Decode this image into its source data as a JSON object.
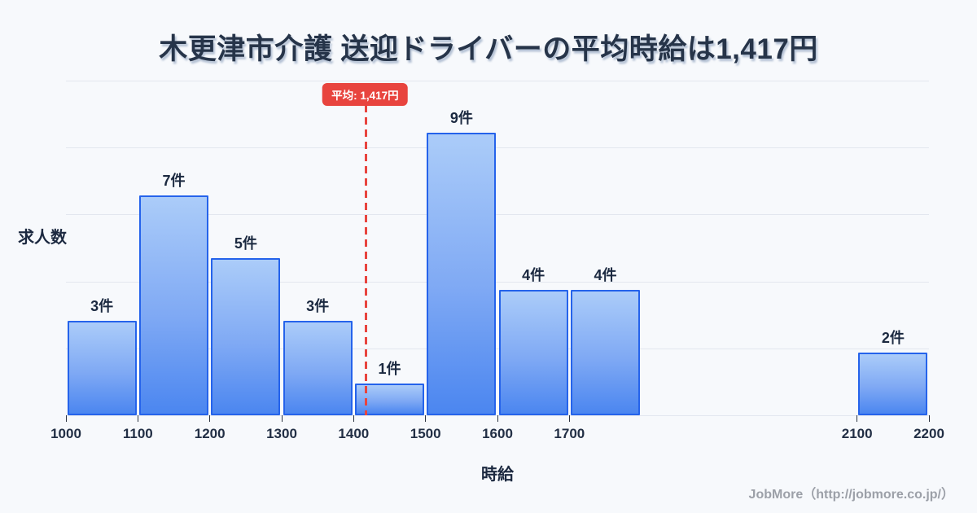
{
  "chart_data": {
    "type": "bar",
    "title": "木更津市介護 送迎ドライバーの平均時給は1,417円",
    "xlabel": "時給",
    "ylabel": "求人数",
    "unit_suffix": "件",
    "bars": [
      {
        "x0": 1000,
        "x1": 1100,
        "count": 3,
        "label": "3件"
      },
      {
        "x0": 1100,
        "x1": 1200,
        "count": 7,
        "label": "7件"
      },
      {
        "x0": 1200,
        "x1": 1300,
        "count": 5,
        "label": "5件"
      },
      {
        "x0": 1300,
        "x1": 1400,
        "count": 3,
        "label": "3件"
      },
      {
        "x0": 1400,
        "x1": 1500,
        "count": 1,
        "label": "1件"
      },
      {
        "x0": 1500,
        "x1": 1600,
        "count": 9,
        "label": "9件"
      },
      {
        "x0": 1600,
        "x1": 1700,
        "count": 4,
        "label": "4件"
      },
      {
        "x0": 1700,
        "x1": 1800,
        "count": 4,
        "label": "4件"
      },
      {
        "x0": 2100,
        "x1": 2200,
        "count": 2,
        "label": "2件"
      }
    ],
    "xticks": [
      "1000",
      "1100",
      "1200",
      "1300",
      "1400",
      "1500",
      "1600",
      "1700",
      "2100",
      "2200"
    ],
    "xlim": [
      1000,
      2200
    ],
    "ylim": [
      0,
      10.65
    ],
    "grid_divisions": 5,
    "grid_on": true,
    "legend": "none",
    "mean": {
      "value": 1417,
      "label": "平均: 1,417円"
    }
  },
  "colors": {
    "background": "#f7f9fc",
    "bar_fill_top": "#abccf9",
    "bar_fill_bottom": "#4b86f0",
    "bar_border": "#2563eb",
    "mean_accent": "#e8443e",
    "grid": "#e3e7ef",
    "title_text": "#263449",
    "tick_text": "#222f45"
  },
  "footer": {
    "credit": "JobMore（http://jobmore.co.jp/）"
  }
}
